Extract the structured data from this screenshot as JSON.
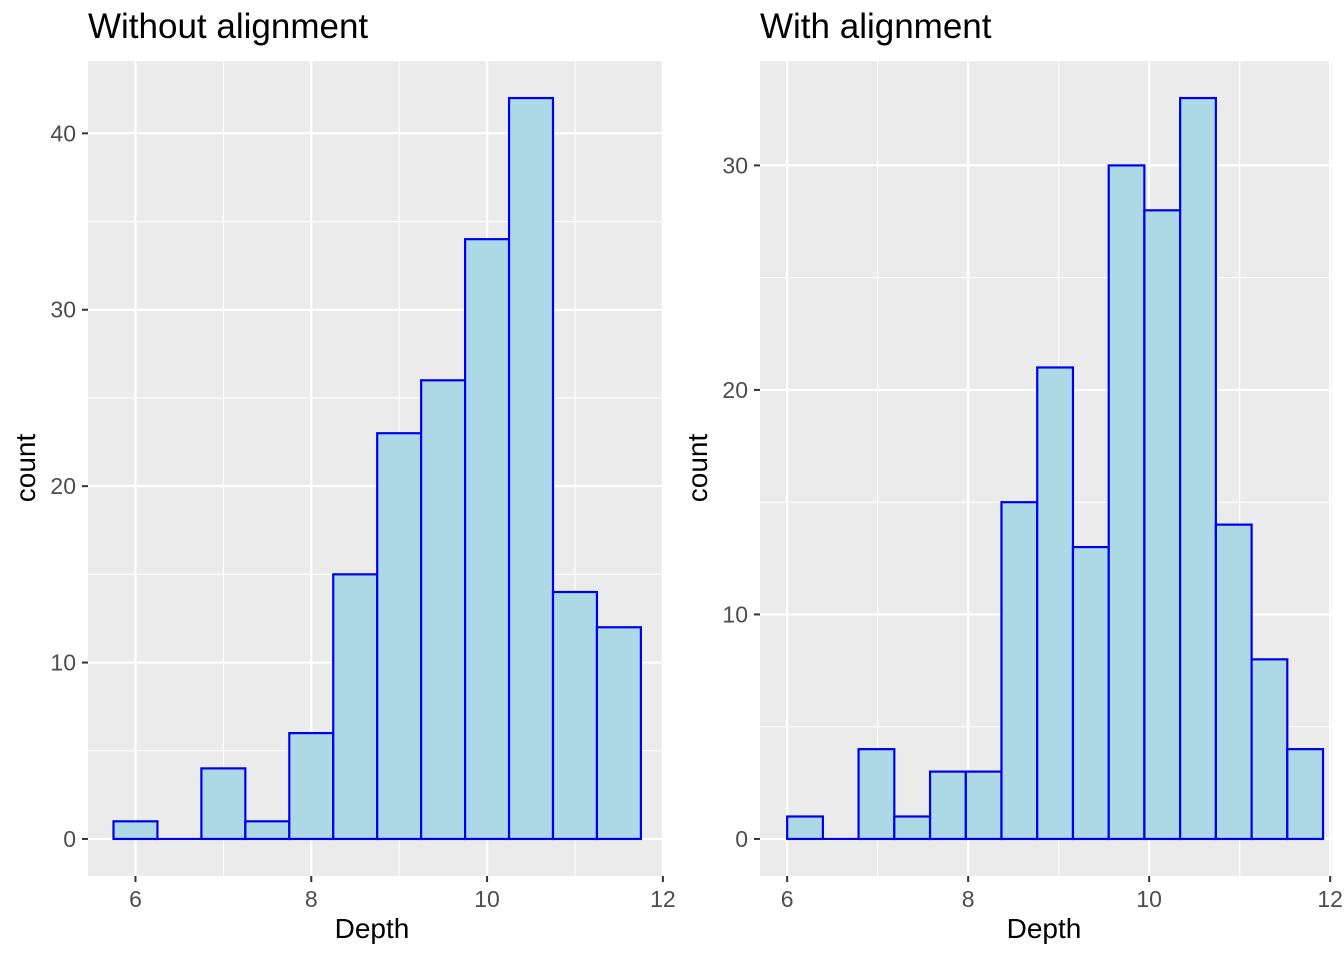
{
  "colors": {
    "panel_bg": "#EBEBEB",
    "grid": "#FFFFFF",
    "bar_fill": "#ADD8E6",
    "bar_stroke": "#0000EE",
    "tick": "#333333",
    "tick_label": "#4D4D4D"
  },
  "chart_data": [
    {
      "type": "bar",
      "title": "Without alignment",
      "xlabel": "Depth",
      "ylabel": "count",
      "xlim": [
        5.46,
        11.99
      ],
      "ylim": [
        -2.1,
        44.1
      ],
      "xticks": [
        6,
        8,
        10,
        12
      ],
      "yticks": [
        0,
        10,
        20,
        30,
        40
      ],
      "bin_width": 0.5,
      "bins": [
        {
          "start": 5.75,
          "end": 6.25,
          "count": 1
        },
        {
          "start": 6.25,
          "end": 6.75,
          "count": 0
        },
        {
          "start": 6.75,
          "end": 7.25,
          "count": 4
        },
        {
          "start": 7.25,
          "end": 7.75,
          "count": 1
        },
        {
          "start": 7.75,
          "end": 8.25,
          "count": 6
        },
        {
          "start": 8.25,
          "end": 8.75,
          "count": 15
        },
        {
          "start": 8.75,
          "end": 9.25,
          "count": 23
        },
        {
          "start": 9.25,
          "end": 9.75,
          "count": 26
        },
        {
          "start": 9.75,
          "end": 10.25,
          "count": 34
        },
        {
          "start": 10.25,
          "end": 10.75,
          "count": 42
        },
        {
          "start": 10.75,
          "end": 11.25,
          "count": 14
        },
        {
          "start": 11.25,
          "end": 11.75,
          "count": 12
        }
      ],
      "grid": true,
      "legend": "none"
    },
    {
      "type": "bar",
      "title": "With alignment",
      "xlabel": "Depth",
      "ylabel": "count",
      "xlim": [
        5.7,
        12.02
      ],
      "ylim": [
        -1.65,
        34.65
      ],
      "xticks": [
        6,
        8,
        10,
        12
      ],
      "yticks": [
        0,
        10,
        20,
        30
      ],
      "bin_width": 0.3947,
      "bins": [
        {
          "start": 6.0,
          "end": 6.395,
          "count": 1
        },
        {
          "start": 6.395,
          "end": 6.789,
          "count": 0
        },
        {
          "start": 6.789,
          "end": 7.184,
          "count": 4
        },
        {
          "start": 7.184,
          "end": 7.579,
          "count": 1
        },
        {
          "start": 7.579,
          "end": 7.974,
          "count": 3
        },
        {
          "start": 7.974,
          "end": 8.368,
          "count": 3
        },
        {
          "start": 8.368,
          "end": 8.763,
          "count": 15
        },
        {
          "start": 8.763,
          "end": 9.158,
          "count": 21
        },
        {
          "start": 9.158,
          "end": 9.553,
          "count": 13
        },
        {
          "start": 9.553,
          "end": 9.947,
          "count": 30
        },
        {
          "start": 9.947,
          "end": 10.342,
          "count": 28
        },
        {
          "start": 10.342,
          "end": 10.737,
          "count": 33
        },
        {
          "start": 10.737,
          "end": 11.132,
          "count": 14
        },
        {
          "start": 11.132,
          "end": 11.526,
          "count": 8
        },
        {
          "start": 11.526,
          "end": 11.921,
          "count": 4
        }
      ],
      "grid": true,
      "legend": "none"
    }
  ]
}
